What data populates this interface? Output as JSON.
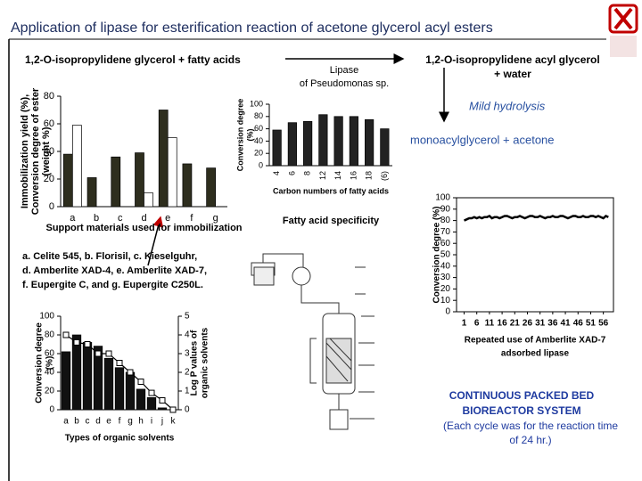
{
  "title": "Application of lipase for esterification reaction of acetone glycerol acyl esters",
  "reaction": {
    "substrate": "1,2-O-isopropylidene glycerol  + fatty acids",
    "enzyme": [
      "Lipase",
      "of Pseudomonas sp."
    ],
    "product": [
      "1,2-O-isopropylidene acyl  glycerol",
      "+ water"
    ],
    "step": "Mild hydrolysis",
    "final": "monoacylglycerol + acetone"
  },
  "support_legend": [
    "a. Celite 545, b. Florisil, c. Kieselguhr,",
    "d. Amberlite XAD-4, e. Amberlite XAD-7,",
    "f. Eupergite C, and g. Eupergite C250L."
  ],
  "reactor_caption": [
    "CONTINUOUS PACKED BED",
    "BIOREACTOR SYSTEM",
    "(Each cycle was for the reaction time",
    "of 24 hr.)"
  ],
  "chart_data": [
    {
      "type": "bar",
      "categories": [
        "a",
        "b",
        "c",
        "d",
        "e",
        "f",
        "g"
      ],
      "series": [
        {
          "color": "#2e2e1e",
          "values": [
            38,
            21,
            36,
            39,
            70,
            31,
            28
          ]
        },
        {
          "color": "#ffffff",
          "values": [
            59,
            null,
            null,
            10,
            50,
            null,
            null
          ]
        }
      ],
      "ylim": [
        0,
        80
      ],
      "yticks": [
        0,
        20,
        40,
        60,
        80
      ],
      "ylabel": [
        "Immobilization yield (%),",
        "Conversion degree of ester",
        "(weight %)"
      ],
      "xlabel": [
        "Support materials used for immobilization"
      ]
    },
    {
      "type": "bar",
      "categories": [
        "4",
        "6",
        "8",
        "12",
        "14",
        "16",
        "18",
        "(6)"
      ],
      "values": [
        58,
        70,
        72,
        83,
        80,
        80,
        75,
        60
      ],
      "color": "#222222",
      "ylim": [
        0,
        100
      ],
      "yticks": [
        0,
        20,
        40,
        60,
        80,
        100
      ],
      "ylabel": [
        "Conversion degree",
        "(%)"
      ],
      "xlabel": [
        "Carbon numbers of fatty acids"
      ],
      "caption": "Fatty acid specificity"
    },
    {
      "type": "bar",
      "categories": [
        "a",
        "b",
        "c",
        "d",
        "e",
        "f",
        "g",
        "h",
        "i",
        "j",
        "k"
      ],
      "series": [
        {
          "color": "#111111",
          "values": [
            62,
            80,
            72,
            68,
            55,
            45,
            40,
            22,
            13,
            2,
            0
          ]
        },
        {
          "color": "#000000",
          "axis": "y2",
          "values": [
            4.0,
            3.6,
            3.5,
            3.0,
            3.0,
            2.5,
            2.0,
            1.5,
            0.9,
            0.5,
            0
          ]
        }
      ],
      "ylim": [
        0,
        100
      ],
      "yticks": [
        0,
        20,
        40,
        60,
        80,
        100
      ],
      "y2lim": [
        0,
        5
      ],
      "y2ticks": [
        0,
        1,
        2,
        3,
        4,
        5
      ],
      "ylabel": [
        "Conversion degree",
        "(%)"
      ],
      "y2label": [
        "Log P values of",
        "organic solvents"
      ],
      "xlabel": [
        "Types of organic solvents"
      ]
    },
    {
      "type": "line",
      "color": "#000000",
      "x": [
        1,
        2,
        3,
        4,
        5,
        6,
        7,
        8,
        9,
        10,
        11,
        12,
        13,
        14,
        15,
        16,
        17,
        18,
        19,
        20,
        21,
        22,
        23,
        24,
        25,
        26,
        27,
        28,
        29,
        30,
        31,
        32,
        33,
        34,
        35,
        36,
        37,
        38,
        39,
        40,
        41,
        42,
        43,
        44,
        45,
        46,
        47,
        48,
        49,
        50,
        51,
        52,
        53,
        54,
        55,
        56,
        57,
        58
      ],
      "values": [
        80,
        81,
        82,
        82,
        83,
        82,
        83,
        82,
        83,
        83,
        84,
        82,
        83,
        83,
        82,
        83,
        84,
        84,
        83,
        82,
        83,
        83,
        84,
        83,
        82,
        83,
        84,
        84,
        83,
        83,
        84,
        83,
        82,
        83,
        83,
        84,
        83,
        83,
        84,
        84,
        83,
        82,
        83,
        84,
        84,
        83,
        83,
        84,
        83,
        83,
        84,
        84,
        83,
        84,
        83,
        82,
        84,
        83
      ],
      "xlim": [
        -2,
        60
      ],
      "xticks": [
        1,
        6,
        11,
        16,
        21,
        26,
        31,
        36,
        41,
        46,
        51,
        56
      ],
      "ylim": [
        0,
        100
      ],
      "yticks": [
        0,
        10,
        20,
        30,
        40,
        50,
        60,
        70,
        80,
        90,
        100
      ],
      "ylabel": [
        "Conversion degree (%)"
      ],
      "xlabel": [
        "Repeated use of Amberlite XAD-7",
        "adsorbed lipase"
      ]
    }
  ]
}
